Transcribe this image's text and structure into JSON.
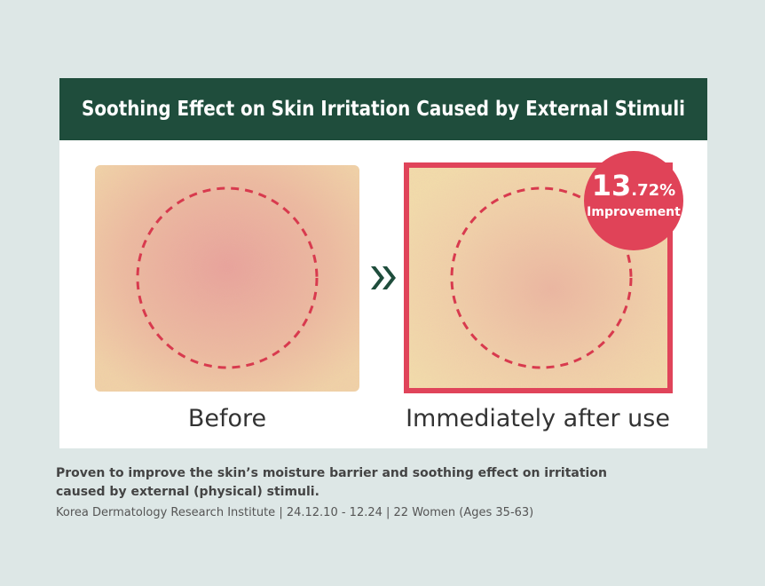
{
  "header": {
    "title": "Soothing Effect on Skin Irritation Caused by External Stimuli"
  },
  "badge": {
    "main": "13",
    "decimal": ".72%",
    "label": "Improvement"
  },
  "panels": [
    {
      "label": "Before"
    },
    {
      "label": "Immediately after use"
    }
  ],
  "caption": {
    "lines": [
      "Proven to improve the skin’s moisture barrier and soothing effect on irritation",
      "caused by external (physical) stimuli."
    ],
    "source": "Korea Dermatology Research Institute | 24.12.10 - 12.24 | 22 Women (Ages 35-63)"
  }
}
